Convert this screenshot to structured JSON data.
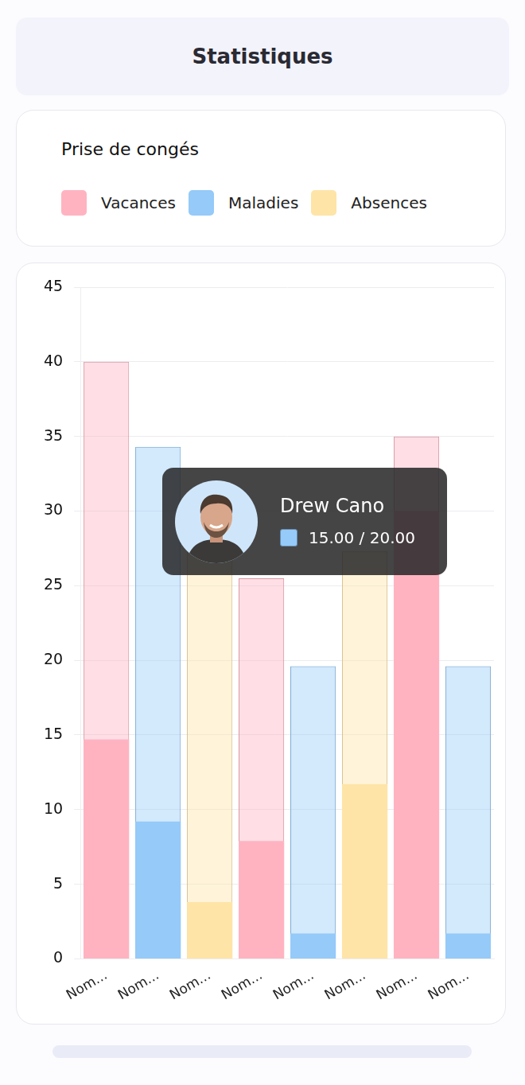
{
  "page": {
    "title": "Statistiques"
  },
  "chart_data": {
    "type": "bar",
    "title": "Prise de congés",
    "categories": [
      "Nom...",
      "Nom...",
      "Nom...",
      "Nom...",
      "Nom...",
      "Nom...",
      "Nom...",
      "Nom..."
    ],
    "series": [
      {
        "name": "Vacances",
        "color": "#ffb3c1",
        "values": [
          40,
          null,
          null,
          25.5,
          null,
          null,
          35,
          null
        ],
        "taken": [
          14.7,
          null,
          null,
          7.9,
          null,
          null,
          30,
          null
        ]
      },
      {
        "name": "Maladies",
        "color": "#95caf9",
        "values": [
          null,
          34.3,
          null,
          null,
          19.6,
          null,
          null,
          19.6
        ],
        "taken": [
          null,
          9.2,
          null,
          null,
          1.7,
          null,
          null,
          1.7
        ]
      },
      {
        "name": "Absences",
        "color": "#fee4a6",
        "values": [
          null,
          null,
          28,
          null,
          null,
          27.3,
          null,
          null
        ],
        "taken": [
          null,
          null,
          3.8,
          null,
          null,
          11.7,
          null,
          null
        ]
      }
    ],
    "ylim": [
      0,
      45
    ],
    "yticks": [
      0,
      5,
      10,
      15,
      20,
      25,
      30,
      35,
      40,
      45
    ],
    "grid": true,
    "legend": "top",
    "annotations": [
      {
        "name": "Drew Cano",
        "text": "15.00 / 20.00",
        "series": "Maladies"
      }
    ]
  }
}
